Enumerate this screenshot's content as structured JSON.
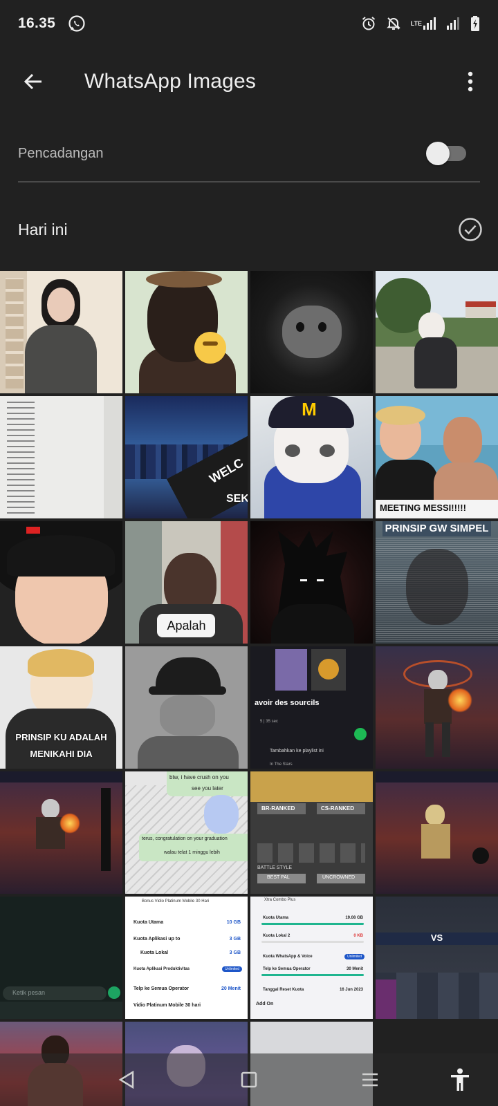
{
  "status_bar": {
    "time": "16.35",
    "network": "LTE"
  },
  "app_bar": {
    "title": "WhatsApp Images"
  },
  "backup": {
    "label": "Pencadangan",
    "enabled": false
  },
  "section": {
    "title": "Hari ini"
  },
  "tiles": {
    "t8": "MEETING MESSI!!!!!",
    "t10": "Apalah",
    "t12": "PRINSIP GW SIMPEL",
    "t13_l1": "PRINSIP KU ADALAH",
    "t13_l2": "MENIKAHI DIA",
    "t15_title": "avoir des sourcils",
    "t15_meta": "5 | 35 sec",
    "t15_action": "Tambahkan ke playlist ini",
    "t15_sub": "In The Stars",
    "t6_a": "WELC",
    "t6_b": "SEK",
    "t18_a": "btw, i have crush on you",
    "t18_b": "see you later",
    "t18_c": "terus, congratulation on your graduation",
    "t18_d": "walau telat 1 minggu lebih",
    "t19_a": "BR-RANKED",
    "t19_b": "CS-RANKED",
    "t19_c": "BATTLE STYLE",
    "t19_d": "BEST PAL",
    "t19_e": "UNCROWNED",
    "t21_input": "Ketik pesan",
    "t22_head": "Bonus Vidio Platinum Mobile 30 Hari",
    "t22_r1": "Kuota Utama",
    "t22_v1": "10 GB",
    "t22_r2": "Kuota Aplikasi up to",
    "t22_v2": "3 GB",
    "t22_r3": "Kuota Lokal",
    "t22_v3": "3 GB",
    "t22_r4": "Kuota Aplikasi Produktivitas",
    "t22_v4": "Unlimited",
    "t22_r5": "Telp ke Semua Operator",
    "t22_v5": "20 Menit",
    "t22_r6": "Vidio Platinum Mobile 30 hari",
    "t23_head": "Xtra Combo Plus",
    "t23_r1": "Kuota Utama",
    "t23_v1": "19.08 GB",
    "t23_r2": "Kuota Lokal 2",
    "t23_v2": "0 KB",
    "t23_r3": "Kuota WhatsApp & Voice",
    "t23_v3": "Unlimited",
    "t23_r4": "Telp ke Semua Operator",
    "t23_v4": "30 Menit",
    "t23_r5": "Tanggal Reset Kuota",
    "t23_v5": "16 Jun 2023",
    "t23_r6": "Add On",
    "t24_vs": "VS"
  },
  "colors": {
    "background": "#212121",
    "accent": "#1da462",
    "toggle_track": "#6f6f6f"
  }
}
